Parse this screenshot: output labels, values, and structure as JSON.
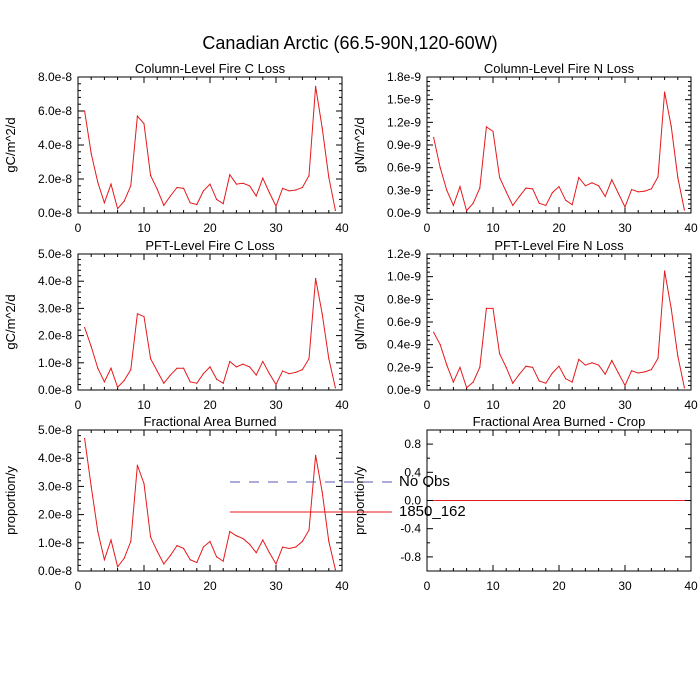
{
  "figure": {
    "title": "Canadian Arctic (66.5-90N,120-60W)"
  },
  "legend": [
    {
      "label": "No Obs",
      "color": "#5a5ab4",
      "dash": true
    },
    {
      "label": "1850_162",
      "color": "#e41a1c",
      "dash": false
    }
  ],
  "chart_data": [
    {
      "type": "line",
      "title": "Column-Level Fire C Loss",
      "ylabel": "gC/m^2/d",
      "xlim": [
        0,
        40
      ],
      "ylim": [
        0,
        8e-08
      ],
      "xticks": [
        "0",
        "10",
        "20",
        "30",
        "40"
      ],
      "yticks": [
        "0.0e-8",
        "2.0e-8",
        "4.0e-8",
        "6.0e-8",
        "8.0e-8"
      ],
      "series": [
        {
          "color": "#e41a1c",
          "x": [
            1,
            2,
            3,
            4,
            5,
            6,
            7,
            8,
            9,
            10,
            11,
            12,
            13,
            14,
            15,
            16,
            17,
            18,
            19,
            20,
            21,
            22,
            23,
            24,
            25,
            26,
            27,
            28,
            29,
            30,
            31,
            32,
            33,
            34,
            35,
            36,
            37,
            38,
            39
          ],
          "y": [
            6e-08,
            3.5e-08,
            1.8e-08,
            6e-09,
            1.7e-08,
            2.5e-09,
            7e-09,
            1.6e-08,
            5.7e-08,
            5.25e-08,
            2.2e-08,
            1.4e-08,
            4.5e-09,
            1e-08,
            1.5e-08,
            1.45e-08,
            6e-09,
            5e-09,
            1.3e-08,
            1.7e-08,
            8e-09,
            5.5e-09,
            2.25e-08,
            1.7e-08,
            1.75e-08,
            1.6e-08,
            1e-08,
            2.05e-08,
            1.2e-08,
            4e-09,
            1.45e-08,
            1.3e-08,
            1.35e-08,
            1.5e-08,
            2.2e-08,
            7.45e-08,
            5e-08,
            2.1e-08,
            1.5e-09
          ]
        }
      ]
    },
    {
      "type": "line",
      "title": "Column-Level Fire N Loss",
      "ylabel": "gN/m^2/d",
      "xlim": [
        0,
        40
      ],
      "ylim": [
        0,
        1.8e-09
      ],
      "xticks": [
        "0",
        "10",
        "20",
        "30",
        "40"
      ],
      "yticks": [
        "0.0e-9",
        "0.3e-9",
        "0.6e-9",
        "0.9e-9",
        "1.2e-9",
        "1.5e-9",
        "1.8e-9"
      ],
      "series": [
        {
          "color": "#e41a1c",
          "x": [
            1,
            2,
            3,
            4,
            5,
            6,
            7,
            8,
            9,
            10,
            11,
            12,
            13,
            14,
            15,
            16,
            17,
            18,
            19,
            20,
            21,
            22,
            23,
            24,
            25,
            26,
            27,
            28,
            29,
            30,
            31,
            32,
            33,
            34,
            35,
            36,
            37,
            38,
            39
          ],
          "y": [
            1e-09,
            6e-10,
            3e-10,
            1e-10,
            3.5e-10,
            3e-11,
            1.3e-10,
            3.3e-10,
            1.14e-09,
            1.08e-09,
            4.7e-10,
            2.8e-10,
            1e-10,
            2.2e-10,
            3.3e-10,
            3.2e-10,
            1.3e-10,
            1e-10,
            2.7e-10,
            3.5e-10,
            1.7e-10,
            1.1e-10,
            4.7e-10,
            3.6e-10,
            4e-10,
            3.6e-10,
            2.2e-10,
            4.4e-10,
            2.6e-10,
            8e-11,
            3.1e-10,
            2.8e-10,
            2.9e-10,
            3.2e-10,
            4.8e-10,
            1.6e-09,
            1.15e-09,
            4.7e-10,
            4e-11
          ]
        }
      ]
    },
    {
      "type": "line",
      "title": "PFT-Level Fire C Loss",
      "ylabel": "gC/m^2/d",
      "xlim": [
        0,
        40
      ],
      "ylim": [
        0,
        5e-08
      ],
      "xticks": [
        "0",
        "10",
        "20",
        "30",
        "40"
      ],
      "yticks": [
        "0.0e-8",
        "1.0e-8",
        "2.0e-8",
        "3.0e-8",
        "4.0e-8",
        "5.0e-8"
      ],
      "series": [
        {
          "color": "#e41a1c",
          "x": [
            1,
            2,
            3,
            4,
            5,
            6,
            7,
            8,
            9,
            10,
            11,
            12,
            13,
            14,
            15,
            16,
            17,
            18,
            19,
            20,
            21,
            22,
            23,
            24,
            25,
            26,
            27,
            28,
            29,
            30,
            31,
            32,
            33,
            34,
            35,
            36,
            37,
            38,
            39
          ],
          "y": [
            2.3e-08,
            1.6e-08,
            8e-09,
            3e-09,
            8e-09,
            1e-09,
            3.5e-09,
            7.5e-09,
            2.8e-08,
            2.7e-08,
            1.15e-08,
            7e-09,
            2.5e-09,
            5.5e-09,
            8e-09,
            8e-09,
            3e-09,
            2.5e-09,
            6e-09,
            8.5e-09,
            4e-09,
            2.5e-09,
            1.05e-08,
            8.5e-09,
            9.5e-09,
            8.5e-09,
            5.5e-09,
            1.05e-08,
            6e-09,
            2e-09,
            7e-09,
            6e-09,
            6.5e-09,
            7.5e-09,
            1.15e-08,
            4.1e-08,
            2.8e-08,
            1.15e-08,
            8e-10
          ]
        }
      ]
    },
    {
      "type": "line",
      "title": "PFT-Level Fire N Loss",
      "ylabel": "gN/m^2/d",
      "xlim": [
        0,
        40
      ],
      "ylim": [
        0,
        1.2e-09
      ],
      "xticks": [
        "0",
        "10",
        "20",
        "30",
        "40"
      ],
      "yticks": [
        "0.0e-9",
        "0.2e-9",
        "0.4e-9",
        "0.6e-9",
        "0.8e-9",
        "1.0e-9",
        "1.2e-9"
      ],
      "series": [
        {
          "color": "#e41a1c",
          "x": [
            1,
            2,
            3,
            4,
            5,
            6,
            7,
            8,
            9,
            10,
            11,
            12,
            13,
            14,
            15,
            16,
            17,
            18,
            19,
            20,
            21,
            22,
            23,
            24,
            25,
            26,
            27,
            28,
            29,
            30,
            31,
            32,
            33,
            34,
            35,
            36,
            37,
            38,
            39
          ],
          "y": [
            5.1e-10,
            4e-10,
            2.2e-10,
            7e-11,
            2e-10,
            2e-11,
            7e-11,
            2e-10,
            7.2e-10,
            7.2e-10,
            3.2e-10,
            2e-10,
            6e-11,
            1.4e-10,
            2.1e-10,
            2e-10,
            8e-11,
            6e-11,
            1.5e-10,
            2.1e-10,
            1e-10,
            7e-11,
            2.7e-10,
            2.2e-10,
            2.4e-10,
            2.2e-10,
            1.4e-10,
            2.6e-10,
            1.5e-10,
            4e-11,
            1.7e-10,
            1.5e-10,
            1.6e-10,
            1.8e-10,
            2.8e-10,
            1.05e-09,
            7.2e-10,
            3e-10,
            2e-11
          ]
        }
      ]
    },
    {
      "type": "line",
      "title": "Fractional Area Burned",
      "ylabel": "proportion/y",
      "xlim": [
        0,
        40
      ],
      "ylim": [
        0,
        5e-08
      ],
      "xticks": [
        "0",
        "10",
        "20",
        "30",
        "40"
      ],
      "yticks": [
        "0.0e-8",
        "1.0e-8",
        "2.0e-8",
        "3.0e-8",
        "4.0e-8",
        "5.0e-8"
      ],
      "series": [
        {
          "color": "#e41a1c",
          "x": [
            1,
            2,
            3,
            4,
            5,
            6,
            7,
            8,
            9,
            10,
            11,
            12,
            13,
            14,
            15,
            16,
            17,
            18,
            19,
            20,
            21,
            22,
            23,
            24,
            25,
            26,
            27,
            28,
            29,
            30,
            31,
            32,
            33,
            34,
            35,
            36,
            37,
            38,
            39
          ],
          "y": [
            4.7e-08,
            3e-08,
            1.4e-08,
            4e-09,
            1.1e-08,
            1.5e-09,
            4.5e-09,
            1.05e-08,
            3.75e-08,
            3.1e-08,
            1.2e-08,
            7e-09,
            2.5e-09,
            5.5e-09,
            9e-09,
            8e-09,
            4e-09,
            3e-09,
            8.5e-09,
            1.05e-08,
            5e-09,
            3.5e-09,
            1.4e-08,
            1.25e-08,
            1.15e-08,
            9.5e-09,
            6.5e-09,
            1.1e-08,
            6.5e-09,
            2.5e-09,
            8.5e-09,
            8e-09,
            8.5e-09,
            1.05e-08,
            1.45e-08,
            4.1e-08,
            2.8e-08,
            1.05e-08,
            5e-10
          ]
        }
      ]
    },
    {
      "type": "line",
      "title": "Fractional Area Burned - Crop",
      "ylabel": "proportion/y",
      "xlim": [
        0,
        40
      ],
      "ylim": [
        -1,
        1
      ],
      "xticks": [
        "0",
        "10",
        "20",
        "30",
        "40"
      ],
      "yticks": [
        "-0.8",
        "-0.4",
        "0.0",
        "0.4",
        "0.8"
      ],
      "ytick_values": [
        -0.8,
        -0.4,
        0.0,
        0.4,
        0.8
      ],
      "series": [
        {
          "color": "#e41a1c",
          "x": [
            1,
            39
          ],
          "y": [
            0,
            0
          ]
        }
      ]
    }
  ]
}
